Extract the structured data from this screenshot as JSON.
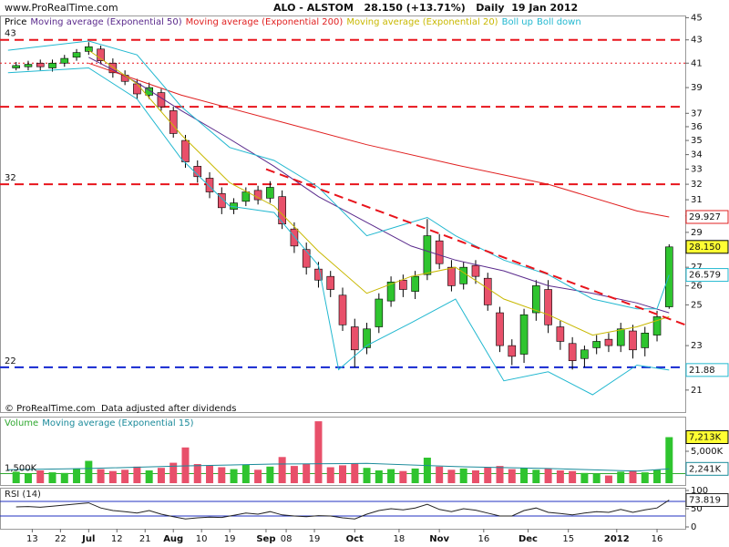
{
  "site": "www.ProRealTime.com",
  "chart_data": [
    {
      "type": "candlestick",
      "title": "ALO - ALSTOM   28.150 (+13.71%)   Daily  19 Jan 2012",
      "name": "Price",
      "note": "© ProRealTime.com  Data adjusted after dividends",
      "x": [
        -4,
        -1,
        2,
        5,
        8,
        11,
        14,
        17,
        20,
        23,
        26,
        29,
        32,
        35,
        38,
        41,
        44,
        47,
        50,
        53,
        56,
        59,
        62,
        65,
        68,
        71,
        74,
        77,
        80,
        83,
        86,
        89,
        92,
        95,
        98,
        101,
        104,
        107,
        110,
        113,
        116,
        119,
        122,
        125,
        128,
        131,
        134,
        137,
        140,
        143,
        146,
        149,
        152,
        155,
        158
      ],
      "open": [
        40.6,
        40.7,
        41.0,
        40.6,
        41.0,
        41.5,
        42.0,
        42.2,
        41.0,
        40.0,
        39.3,
        38.4,
        38.6,
        37.2,
        35.0,
        33.2,
        32.4,
        31.4,
        30.4,
        30.9,
        31.6,
        31.1,
        31.2,
        29.2,
        28.0,
        26.9,
        26.5,
        25.5,
        23.9,
        22.9,
        23.9,
        25.2,
        26.3,
        25.7,
        26.6,
        28.5,
        27.0,
        26.1,
        27.1,
        26.4,
        24.6,
        23.0,
        22.6,
        24.6,
        25.8,
        23.9,
        23.1,
        22.4,
        22.9,
        23.3,
        23.0,
        23.7,
        22.9,
        23.5,
        24.9
      ],
      "high": [
        41.1,
        41.2,
        41.3,
        41.3,
        41.7,
        42.2,
        42.8,
        42.5,
        41.4,
        40.4,
        39.7,
        39.4,
        38.9,
        37.5,
        35.4,
        33.6,
        32.8,
        31.8,
        31.1,
        31.8,
        31.9,
        32.2,
        31.6,
        29.6,
        28.4,
        27.3,
        26.8,
        25.9,
        24.3,
        24.1,
        25.6,
        26.5,
        26.6,
        26.8,
        29.8,
        28.9,
        27.4,
        27.3,
        27.4,
        26.7,
        24.9,
        23.3,
        24.8,
        26.3,
        26.3,
        24.2,
        23.4,
        23.0,
        23.5,
        23.6,
        24.1,
        24.0,
        23.9,
        24.7,
        28.3
      ],
      "low": [
        40.4,
        40.4,
        40.4,
        40.3,
        40.7,
        41.2,
        41.7,
        40.9,
        39.8,
        39.2,
        38.1,
        38.1,
        37.2,
        35.2,
        33.1,
        32.1,
        31.1,
        30.1,
        30.1,
        30.6,
        30.7,
        30.8,
        29.2,
        27.8,
        26.6,
        25.9,
        25.4,
        23.7,
        22.0,
        22.6,
        23.6,
        24.9,
        25.4,
        25.3,
        26.3,
        26.9,
        25.7,
        25.8,
        26.1,
        24.7,
        22.7,
        22.1,
        22.2,
        24.2,
        23.6,
        22.8,
        21.9,
        22.0,
        22.6,
        22.7,
        22.7,
        22.4,
        22.5,
        23.2,
        24.8
      ],
      "close": [
        40.8,
        40.9,
        40.7,
        41.0,
        41.4,
        41.9,
        42.4,
        41.2,
        40.2,
        39.5,
        38.5,
        39.0,
        37.5,
        35.5,
        33.5,
        32.5,
        31.5,
        30.5,
        30.8,
        31.5,
        31.0,
        31.8,
        29.5,
        28.2,
        27.0,
        26.3,
        25.8,
        24.0,
        22.8,
        23.8,
        25.3,
        26.2,
        25.8,
        26.5,
        28.8,
        27.2,
        26.0,
        27.0,
        26.5,
        25.0,
        23.0,
        22.5,
        24.5,
        26.0,
        24.0,
        23.2,
        22.3,
        22.8,
        23.2,
        23.0,
        23.8,
        22.8,
        23.6,
        24.4,
        28.15
      ],
      "last_label": "28.150",
      "label_fill": "#ffff33",
      "up_color": "#2fc42f",
      "down_color": "#e8506a",
      "log_scale": true,
      "ylim": [
        20.15,
        45.2
      ],
      "yticks": [
        21,
        23,
        25,
        26,
        27,
        29,
        30,
        31,
        32,
        33,
        34,
        35,
        36,
        37,
        39,
        41,
        43,
        45
      ],
      "series": [
        {
          "name": "Moving average (Exponential 50)",
          "color": "#5a2a8c",
          "x": [
            14,
            26,
            37,
            49,
            60,
            71,
            83,
            94,
            105,
            117,
            128,
            139,
            150,
            158
          ],
          "values": [
            41.5,
            39.4,
            37.2,
            35.1,
            33.2,
            31.2,
            29.6,
            28.2,
            27.4,
            26.8,
            26.0,
            25.6,
            25.1,
            24.6
          ]
        },
        {
          "name": "Moving average (Exponential 200)",
          "color": "#e02020",
          "x": [
            14,
            37,
            60,
            83,
            105,
            128,
            150,
            158
          ],
          "values": [
            41.0,
            38.4,
            36.5,
            34.7,
            33.3,
            32.0,
            30.3,
            29.927
          ],
          "last_label": "29.927"
        },
        {
          "name": "Moving average (Exponential 20)",
          "color": "#c8b800",
          "x": [
            14,
            26,
            37,
            49,
            60,
            71,
            83,
            94,
            105,
            117,
            128,
            139,
            150,
            158
          ],
          "values": [
            42.1,
            39.3,
            35.4,
            32.1,
            30.6,
            27.9,
            25.6,
            26.5,
            27.0,
            25.3,
            24.5,
            23.5,
            23.9,
            24.4
          ]
        },
        {
          "name": "Boll up",
          "color": "#22b8d0",
          "x": [
            -6,
            14,
            26,
            37,
            49,
            60,
            71,
            83,
            94,
            98,
            105,
            117,
            128,
            139,
            150,
            155,
            158
          ],
          "values": [
            42.1,
            42.9,
            41.7,
            37.5,
            34.5,
            33.6,
            31.8,
            28.8,
            29.6,
            29.9,
            28.8,
            27.4,
            26.6,
            25.3,
            24.8,
            24.8,
            26.579
          ],
          "last_label": "26.579"
        },
        {
          "name": "Boll down",
          "color": "#22b8d0",
          "x": [
            -6,
            14,
            26,
            37,
            49,
            60,
            71,
            76,
            83,
            94,
            105,
            117,
            128,
            139,
            150,
            158
          ],
          "values": [
            40.2,
            40.6,
            38.1,
            33.7,
            30.6,
            30.2,
            27.1,
            21.9,
            23.0,
            24.1,
            25.3,
            21.4,
            21.8,
            20.8,
            22.1,
            21.88
          ],
          "last_label": "21.88"
        }
      ],
      "levels": [
        {
          "value": 43,
          "color": "#e8141c",
          "style": "dashed",
          "labeled": true
        },
        {
          "value": 41,
          "color": "#e8141c",
          "style": "dotted",
          "labeled": false
        },
        {
          "value": 37.5,
          "color": "#e8141c",
          "style": "dashed",
          "labeled": false
        },
        {
          "value": 32,
          "color": "#e8141c",
          "style": "dashed",
          "labeled": true
        },
        {
          "value": 22,
          "color": "#1428d0",
          "style": "dashed",
          "labeled": true
        }
      ],
      "trendline": {
        "color": "#e8141c",
        "x": [
          58,
          162
        ],
        "values": [
          33.0,
          24.0
        ]
      }
    },
    {
      "type": "bar",
      "name": "Volume",
      "name_color": "#2fa82f",
      "values": [
        1800000,
        1500000,
        2000000,
        1700000,
        1600000,
        2300000,
        3500000,
        2200000,
        1900000,
        2100000,
        2600000,
        2000000,
        2400000,
        3200000,
        5600000,
        3000000,
        2800000,
        2500000,
        2200000,
        2900000,
        2100000,
        2600000,
        4100000,
        2700000,
        3000000,
        9700000,
        2500000,
        2800000,
        3100000,
        2400000,
        2000000,
        2200000,
        1900000,
        2300000,
        4000000,
        2600000,
        2100000,
        2300000,
        2000000,
        2500000,
        2700000,
        2200000,
        2400000,
        2100000,
        2300000,
        2000000,
        1900000,
        1600000,
        1500000,
        1200000,
        1800000,
        2000000,
        1700000,
        2100000,
        7213000
      ],
      "last_label": "7,213K",
      "label_fill": "#ffff33",
      "ylim": [
        0,
        10000000
      ],
      "yticks": [
        {
          "value": 5000000,
          "label": "5,000K"
        }
      ],
      "levels": [
        {
          "value": 1500000,
          "label": "1,500K",
          "color": "#2fa82f",
          "style": "solid"
        }
      ],
      "series": [
        {
          "name": "Moving average (Exponential 15)",
          "color": "#1a8a9a",
          "x": [
            -6,
            14,
            37,
            60,
            83,
            105,
            128,
            150,
            158
          ],
          "values": [
            2100000,
            2300000,
            2700000,
            3000000,
            3100000,
            2600000,
            2300000,
            1900000,
            2241000
          ],
          "last_label": "2,241K"
        }
      ]
    },
    {
      "type": "line",
      "name": "RSI (14)",
      "color": "#222222",
      "values": [
        55,
        56,
        54,
        57,
        60,
        63,
        66,
        52,
        45,
        42,
        38,
        45,
        35,
        28,
        22,
        25,
        27,
        26,
        32,
        38,
        35,
        42,
        33,
        30,
        28,
        31,
        30,
        25,
        22,
        35,
        45,
        50,
        47,
        52,
        62,
        48,
        42,
        50,
        46,
        38,
        30,
        30,
        45,
        52,
        40,
        37,
        33,
        38,
        42,
        40,
        48,
        40,
        47,
        52,
        73.819
      ],
      "last_label": "73.819",
      "ylim": [
        0,
        100
      ],
      "yticks": [
        0,
        50,
        100
      ],
      "levels": [
        {
          "value": 70,
          "color": "#2030c0",
          "style": "solid"
        },
        {
          "value": 30,
          "color": "#2030c0",
          "style": "solid"
        }
      ],
      "xlim": [
        -8,
        162
      ],
      "xticks": [
        {
          "value": 0,
          "label": "13"
        },
        {
          "value": 7,
          "label": "22"
        },
        {
          "value": 14,
          "label": "Jul"
        },
        {
          "value": 21,
          "label": "12"
        },
        {
          "value": 28,
          "label": "21"
        },
        {
          "value": 35,
          "label": "Aug"
        },
        {
          "value": 42,
          "label": "10"
        },
        {
          "value": 49,
          "label": "19"
        },
        {
          "value": 58,
          "label": "Sep"
        },
        {
          "value": 63,
          "label": "08"
        },
        {
          "value": 70,
          "label": "19"
        },
        {
          "value": 80,
          "label": "Oct"
        },
        {
          "value": 91,
          "label": "18"
        },
        {
          "value": 101,
          "label": "Nov"
        },
        {
          "value": 112,
          "label": "16"
        },
        {
          "value": 123,
          "label": "Dec"
        },
        {
          "value": 133,
          "label": "15"
        },
        {
          "value": 145,
          "label": "2012"
        },
        {
          "value": 155,
          "label": "16"
        }
      ]
    }
  ]
}
